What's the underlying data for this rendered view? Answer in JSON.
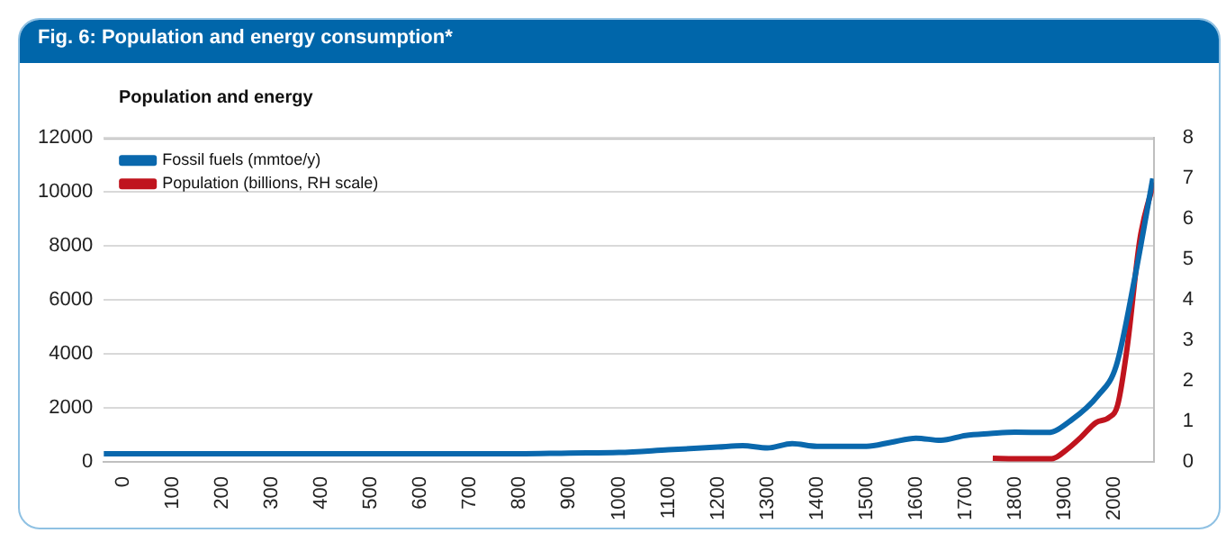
{
  "chart_data": {
    "type": "line",
    "title": "Fig. 6: Population and energy consumption*",
    "subtitle": "Population and energy",
    "xlim": [
      -40,
      2080
    ],
    "xticks": [
      0,
      100,
      200,
      300,
      400,
      500,
      600,
      700,
      800,
      900,
      1000,
      1100,
      1200,
      1300,
      1400,
      1500,
      1600,
      1700,
      1800,
      1900,
      2000
    ],
    "ylim": [
      0,
      12000
    ],
    "yticks": [
      0,
      2000,
      4000,
      6000,
      8000,
      10000,
      12000
    ],
    "y2lim": [
      0,
      8
    ],
    "y2ticks": [
      0,
      1,
      2,
      3,
      4,
      5,
      6,
      7,
      8
    ],
    "grid": "y",
    "legend": "top left",
    "marker": "none",
    "line_style": "solid",
    "series": [
      {
        "name": "Fossil fuels (mmtoe/y)",
        "color": "#0a68ad",
        "x": [
          -40,
          0,
          200,
          400,
          600,
          800,
          900,
          1000,
          1100,
          1200,
          1250,
          1300,
          1350,
          1400,
          1450,
          1500,
          1550,
          1600,
          1650,
          1700,
          1750,
          1800,
          1866,
          1915,
          1967,
          2004,
          2041,
          2078
        ],
        "values": [
          300,
          300,
          300,
          300,
          300,
          300,
          330,
          350,
          450,
          550,
          600,
          520,
          680,
          580,
          580,
          580,
          730,
          880,
          800,
          980,
          1050,
          1100,
          1090,
          1570,
          2450,
          3550,
          6760,
          10500
        ]
      },
      {
        "name": "Population (billions, RH scale)",
        "color": "#c0141e",
        "axis": "y2",
        "x": [
          1755,
          1800,
          1874,
          1904,
          1933,
          1963,
          1990,
          2007,
          2026,
          2052,
          2080
        ],
        "values": [
          0.09,
          0.08,
          0.08,
          0.3,
          0.61,
          0.97,
          1.1,
          1.4,
          2.8,
          5.5,
          6.9
        ]
      }
    ]
  }
}
